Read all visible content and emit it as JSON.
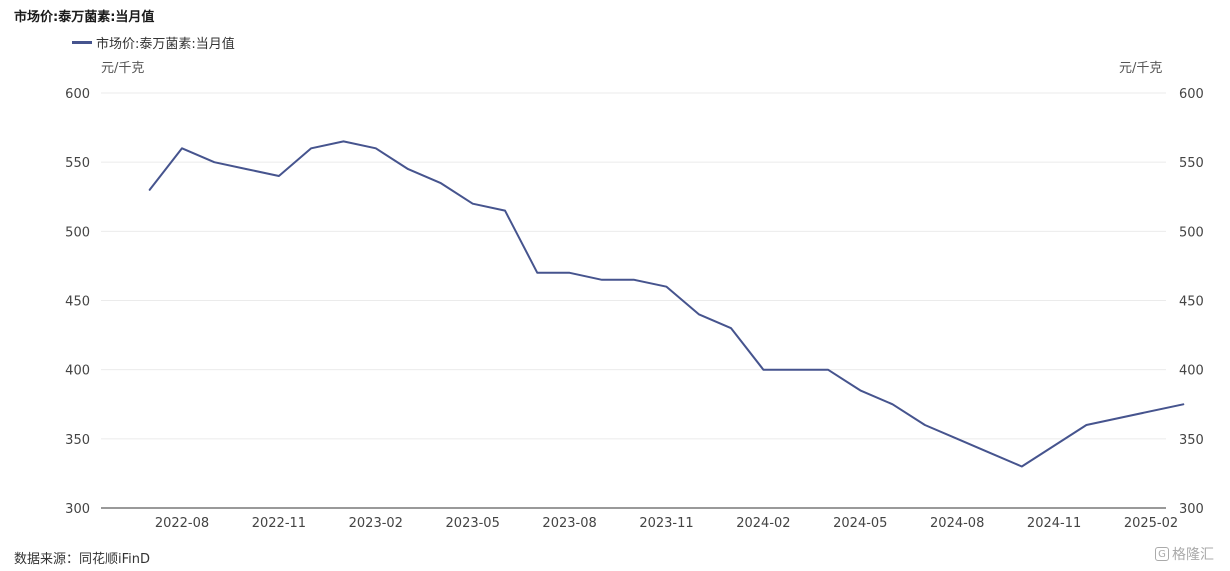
{
  "chart_data": {
    "type": "line",
    "title": "市场价:泰万菌素:当月值",
    "y_unit_left": "元/千克",
    "y_unit_right": "元/千克",
    "ylim": [
      300,
      600
    ],
    "y_ticks": [
      300,
      350,
      400,
      450,
      500,
      550,
      600
    ],
    "x_ticks": [
      "2022-08",
      "2022-11",
      "2023-02",
      "2023-05",
      "2023-08",
      "2023-11",
      "2024-02",
      "2024-05",
      "2024-08",
      "2024-11",
      "2025-02"
    ],
    "grid": true,
    "legend_position": "top-left",
    "series": [
      {
        "name": "市场价:泰万菌素:当月值",
        "color": "#46548e",
        "x": [
          "2022-07",
          "2022-08",
          "2022-09",
          "2022-10",
          "2022-11",
          "2022-12",
          "2023-01",
          "2023-02",
          "2023-03",
          "2023-04",
          "2023-05",
          "2023-06",
          "2023-07",
          "2023-08",
          "2023-09",
          "2023-10",
          "2023-11",
          "2023-12",
          "2024-01",
          "2024-02",
          "2024-03",
          "2024-04",
          "2024-05",
          "2024-06",
          "2024-07",
          "2024-08",
          "2024-09",
          "2024-10",
          "2024-11",
          "2024-12",
          "2025-01",
          "2025-02",
          "2025-03"
        ],
        "values": [
          530,
          560,
          550,
          545,
          540,
          560,
          565,
          560,
          545,
          535,
          520,
          515,
          470,
          470,
          465,
          465,
          460,
          440,
          430,
          400,
          400,
          400,
          385,
          375,
          360,
          350,
          340,
          330,
          null,
          360,
          null,
          null,
          375
        ]
      }
    ]
  },
  "source": "数据来源：同花顺iFinD",
  "watermark": "格隆汇"
}
